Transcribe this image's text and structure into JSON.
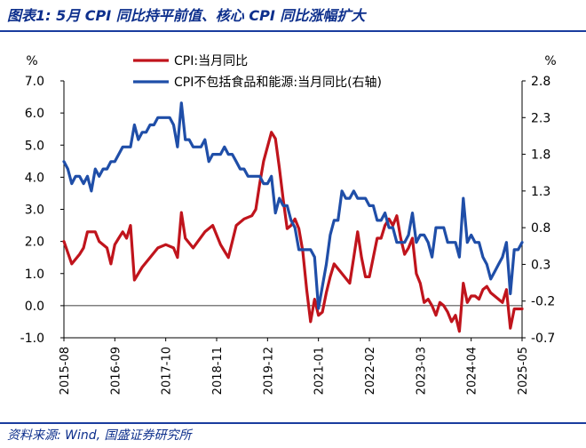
{
  "header": {
    "title": "图表1:  5月 CPI 同比持平前值、核心 CPI 同比涨幅扩大"
  },
  "footer": {
    "source": "资料来源:  Wind, 国盛证券研究所"
  },
  "colors": {
    "headline": "#0d2f8c",
    "cpi": "#c0141c",
    "core_cpi": "#1f4ea8"
  },
  "chart_data": {
    "type": "line",
    "y_unit_left": "%",
    "y_unit_right": "%",
    "ylim_left": [
      -1.0,
      7.0
    ],
    "yticks_left": [
      "7.0",
      "6.0",
      "5.0",
      "4.0",
      "3.0",
      "2.0",
      "1.0",
      "0.0",
      "-1.0"
    ],
    "ylim_right": [
      -0.7,
      2.8
    ],
    "yticks_right": [
      "2.8",
      "2.3",
      "1.8",
      "1.3",
      "0.8",
      "0.3",
      "-0.2",
      "-0.7"
    ],
    "x_tick_labels": [
      "2015-08",
      "2016-09",
      "2017-10",
      "2018-11",
      "2019-12",
      "2021-01",
      "2022-02",
      "2023-03",
      "2024-04",
      "2025-05"
    ],
    "legend_position": "top-center",
    "series": [
      {
        "name": "CPI:当月同比",
        "axis": "left",
        "color": "#c0141c",
        "points": [
          [
            "2015-08",
            2.0
          ],
          [
            "2015-10",
            1.3
          ],
          [
            "2015-12",
            1.6
          ],
          [
            "2016-01",
            1.8
          ],
          [
            "2016-02",
            2.3
          ],
          [
            "2016-04",
            2.3
          ],
          [
            "2016-05",
            2.0
          ],
          [
            "2016-06",
            1.9
          ],
          [
            "2016-07",
            1.8
          ],
          [
            "2016-08",
            1.3
          ],
          [
            "2016-09",
            1.9
          ],
          [
            "2016-10",
            2.1
          ],
          [
            "2016-11",
            2.3
          ],
          [
            "2016-12",
            2.1
          ],
          [
            "2017-01",
            2.5
          ],
          [
            "2017-02",
            0.8
          ],
          [
            "2017-04",
            1.2
          ],
          [
            "2017-06",
            1.5
          ],
          [
            "2017-08",
            1.8
          ],
          [
            "2017-10",
            1.9
          ],
          [
            "2017-12",
            1.8
          ],
          [
            "2018-01",
            1.5
          ],
          [
            "2018-02",
            2.9
          ],
          [
            "2018-03",
            2.1
          ],
          [
            "2018-05",
            1.8
          ],
          [
            "2018-08",
            2.3
          ],
          [
            "2018-10",
            2.5
          ],
          [
            "2018-12",
            1.9
          ],
          [
            "2019-01",
            1.7
          ],
          [
            "2019-02",
            1.5
          ],
          [
            "2019-04",
            2.5
          ],
          [
            "2019-06",
            2.7
          ],
          [
            "2019-08",
            2.8
          ],
          [
            "2019-09",
            3.0
          ],
          [
            "2019-10",
            3.8
          ],
          [
            "2019-11",
            4.5
          ],
          [
            "2020-01",
            5.4
          ],
          [
            "2020-02",
            5.2
          ],
          [
            "2020-03",
            4.3
          ],
          [
            "2020-04",
            3.3
          ],
          [
            "2020-05",
            2.4
          ],
          [
            "2020-06",
            2.5
          ],
          [
            "2020-07",
            2.7
          ],
          [
            "2020-08",
            2.4
          ],
          [
            "2020-09",
            1.7
          ],
          [
            "2020-10",
            0.5
          ],
          [
            "2020-11",
            -0.5
          ],
          [
            "2020-12",
            0.2
          ],
          [
            "2021-01",
            -0.3
          ],
          [
            "2021-02",
            -0.2
          ],
          [
            "2021-03",
            0.4
          ],
          [
            "2021-04",
            0.9
          ],
          [
            "2021-05",
            1.3
          ],
          [
            "2021-07",
            1.0
          ],
          [
            "2021-09",
            0.7
          ],
          [
            "2021-10",
            1.5
          ],
          [
            "2021-11",
            2.3
          ],
          [
            "2021-12",
            1.5
          ],
          [
            "2022-01",
            0.9
          ],
          [
            "2022-02",
            0.9
          ],
          [
            "2022-03",
            1.5
          ],
          [
            "2022-04",
            2.1
          ],
          [
            "2022-05",
            2.1
          ],
          [
            "2022-06",
            2.5
          ],
          [
            "2022-07",
            2.7
          ],
          [
            "2022-08",
            2.5
          ],
          [
            "2022-09",
            2.8
          ],
          [
            "2022-10",
            2.1
          ],
          [
            "2022-11",
            1.6
          ],
          [
            "2022-12",
            1.8
          ],
          [
            "2023-01",
            2.1
          ],
          [
            "2023-02",
            1.0
          ],
          [
            "2023-03",
            0.7
          ],
          [
            "2023-04",
            0.1
          ],
          [
            "2023-05",
            0.2
          ],
          [
            "2023-06",
            0.0
          ],
          [
            "2023-07",
            -0.3
          ],
          [
            "2023-08",
            0.1
          ],
          [
            "2023-09",
            0.0
          ],
          [
            "2023-10",
            -0.2
          ],
          [
            "2023-11",
            -0.5
          ],
          [
            "2023-12",
            -0.3
          ],
          [
            "2024-01",
            -0.8
          ],
          [
            "2024-02",
            0.7
          ],
          [
            "2024-03",
            0.1
          ],
          [
            "2024-04",
            0.3
          ],
          [
            "2024-05",
            0.3
          ],
          [
            "2024-06",
            0.2
          ],
          [
            "2024-07",
            0.5
          ],
          [
            "2024-08",
            0.6
          ],
          [
            "2024-09",
            0.4
          ],
          [
            "2024-10",
            0.3
          ],
          [
            "2024-11",
            0.2
          ],
          [
            "2024-12",
            0.1
          ],
          [
            "2025-01",
            0.5
          ],
          [
            "2025-02",
            -0.7
          ],
          [
            "2025-03",
            -0.1
          ],
          [
            "2025-04",
            -0.1
          ],
          [
            "2025-05",
            -0.1
          ]
        ]
      },
      {
        "name": "CPI不包括食品和能源:当月同比(右轴)",
        "axis": "right",
        "color": "#1f4ea8",
        "points": [
          [
            "2015-08",
            1.7
          ],
          [
            "2015-09",
            1.6
          ],
          [
            "2015-10",
            1.4
          ],
          [
            "2015-11",
            1.5
          ],
          [
            "2015-12",
            1.5
          ],
          [
            "2016-01",
            1.4
          ],
          [
            "2016-02",
            1.5
          ],
          [
            "2016-03",
            1.3
          ],
          [
            "2016-04",
            1.6
          ],
          [
            "2016-05",
            1.5
          ],
          [
            "2016-06",
            1.6
          ],
          [
            "2016-07",
            1.6
          ],
          [
            "2016-08",
            1.7
          ],
          [
            "2016-09",
            1.7
          ],
          [
            "2016-10",
            1.8
          ],
          [
            "2016-11",
            1.9
          ],
          [
            "2016-12",
            1.9
          ],
          [
            "2017-01",
            1.9
          ],
          [
            "2017-02",
            2.2
          ],
          [
            "2017-03",
            2.0
          ],
          [
            "2017-04",
            2.1
          ],
          [
            "2017-05",
            2.1
          ],
          [
            "2017-06",
            2.2
          ],
          [
            "2017-07",
            2.2
          ],
          [
            "2017-08",
            2.3
          ],
          [
            "2017-09",
            2.3
          ],
          [
            "2017-10",
            2.3
          ],
          [
            "2017-11",
            2.3
          ],
          [
            "2017-12",
            2.2
          ],
          [
            "2018-01",
            1.9
          ],
          [
            "2018-02",
            2.5
          ],
          [
            "2018-03",
            2.0
          ],
          [
            "2018-04",
            2.0
          ],
          [
            "2018-05",
            1.9
          ],
          [
            "2018-06",
            1.9
          ],
          [
            "2018-07",
            1.9
          ],
          [
            "2018-08",
            2.0
          ],
          [
            "2018-09",
            1.7
          ],
          [
            "2018-10",
            1.8
          ],
          [
            "2018-11",
            1.8
          ],
          [
            "2018-12",
            1.8
          ],
          [
            "2019-01",
            1.9
          ],
          [
            "2019-02",
            1.8
          ],
          [
            "2019-03",
            1.8
          ],
          [
            "2019-04",
            1.7
          ],
          [
            "2019-05",
            1.6
          ],
          [
            "2019-06",
            1.6
          ],
          [
            "2019-07",
            1.5
          ],
          [
            "2019-08",
            1.5
          ],
          [
            "2019-09",
            1.5
          ],
          [
            "2019-10",
            1.5
          ],
          [
            "2019-11",
            1.4
          ],
          [
            "2019-12",
            1.4
          ],
          [
            "2020-01",
            1.5
          ],
          [
            "2020-02",
            1.0
          ],
          [
            "2020-03",
            1.2
          ],
          [
            "2020-04",
            1.1
          ],
          [
            "2020-05",
            1.1
          ],
          [
            "2020-06",
            0.9
          ],
          [
            "2020-07",
            0.8
          ],
          [
            "2020-08",
            0.5
          ],
          [
            "2020-09",
            0.5
          ],
          [
            "2020-10",
            0.5
          ],
          [
            "2020-11",
            0.5
          ],
          [
            "2020-12",
            0.4
          ],
          [
            "2021-01",
            -0.3
          ],
          [
            "2021-02",
            0.0
          ],
          [
            "2021-03",
            0.3
          ],
          [
            "2021-04",
            0.7
          ],
          [
            "2021-05",
            0.9
          ],
          [
            "2021-06",
            0.9
          ],
          [
            "2021-07",
            1.3
          ],
          [
            "2021-08",
            1.2
          ],
          [
            "2021-09",
            1.2
          ],
          [
            "2021-10",
            1.3
          ],
          [
            "2021-11",
            1.2
          ],
          [
            "2021-12",
            1.2
          ],
          [
            "2022-01",
            1.2
          ],
          [
            "2022-02",
            1.1
          ],
          [
            "2022-03",
            1.1
          ],
          [
            "2022-04",
            0.9
          ],
          [
            "2022-05",
            0.9
          ],
          [
            "2022-06",
            1.0
          ],
          [
            "2022-07",
            0.8
          ],
          [
            "2022-08",
            0.8
          ],
          [
            "2022-09",
            0.6
          ],
          [
            "2022-10",
            0.6
          ],
          [
            "2022-11",
            0.6
          ],
          [
            "2022-12",
            0.7
          ],
          [
            "2023-01",
            1.0
          ],
          [
            "2023-02",
            0.6
          ],
          [
            "2023-03",
            0.7
          ],
          [
            "2023-04",
            0.7
          ],
          [
            "2023-05",
            0.6
          ],
          [
            "2023-06",
            0.4
          ],
          [
            "2023-07",
            0.8
          ],
          [
            "2023-08",
            0.8
          ],
          [
            "2023-09",
            0.8
          ],
          [
            "2023-10",
            0.6
          ],
          [
            "2023-11",
            0.6
          ],
          [
            "2023-12",
            0.6
          ],
          [
            "2024-01",
            0.4
          ],
          [
            "2024-02",
            1.2
          ],
          [
            "2024-03",
            0.6
          ],
          [
            "2024-04",
            0.7
          ],
          [
            "2024-05",
            0.6
          ],
          [
            "2024-06",
            0.6
          ],
          [
            "2024-07",
            0.4
          ],
          [
            "2024-08",
            0.3
          ],
          [
            "2024-09",
            0.1
          ],
          [
            "2024-10",
            0.2
          ],
          [
            "2024-11",
            0.3
          ],
          [
            "2024-12",
            0.4
          ],
          [
            "2025-01",
            0.6
          ],
          [
            "2025-02",
            -0.1
          ],
          [
            "2025-03",
            0.5
          ],
          [
            "2025-04",
            0.5
          ],
          [
            "2025-05",
            0.6
          ]
        ]
      }
    ]
  }
}
